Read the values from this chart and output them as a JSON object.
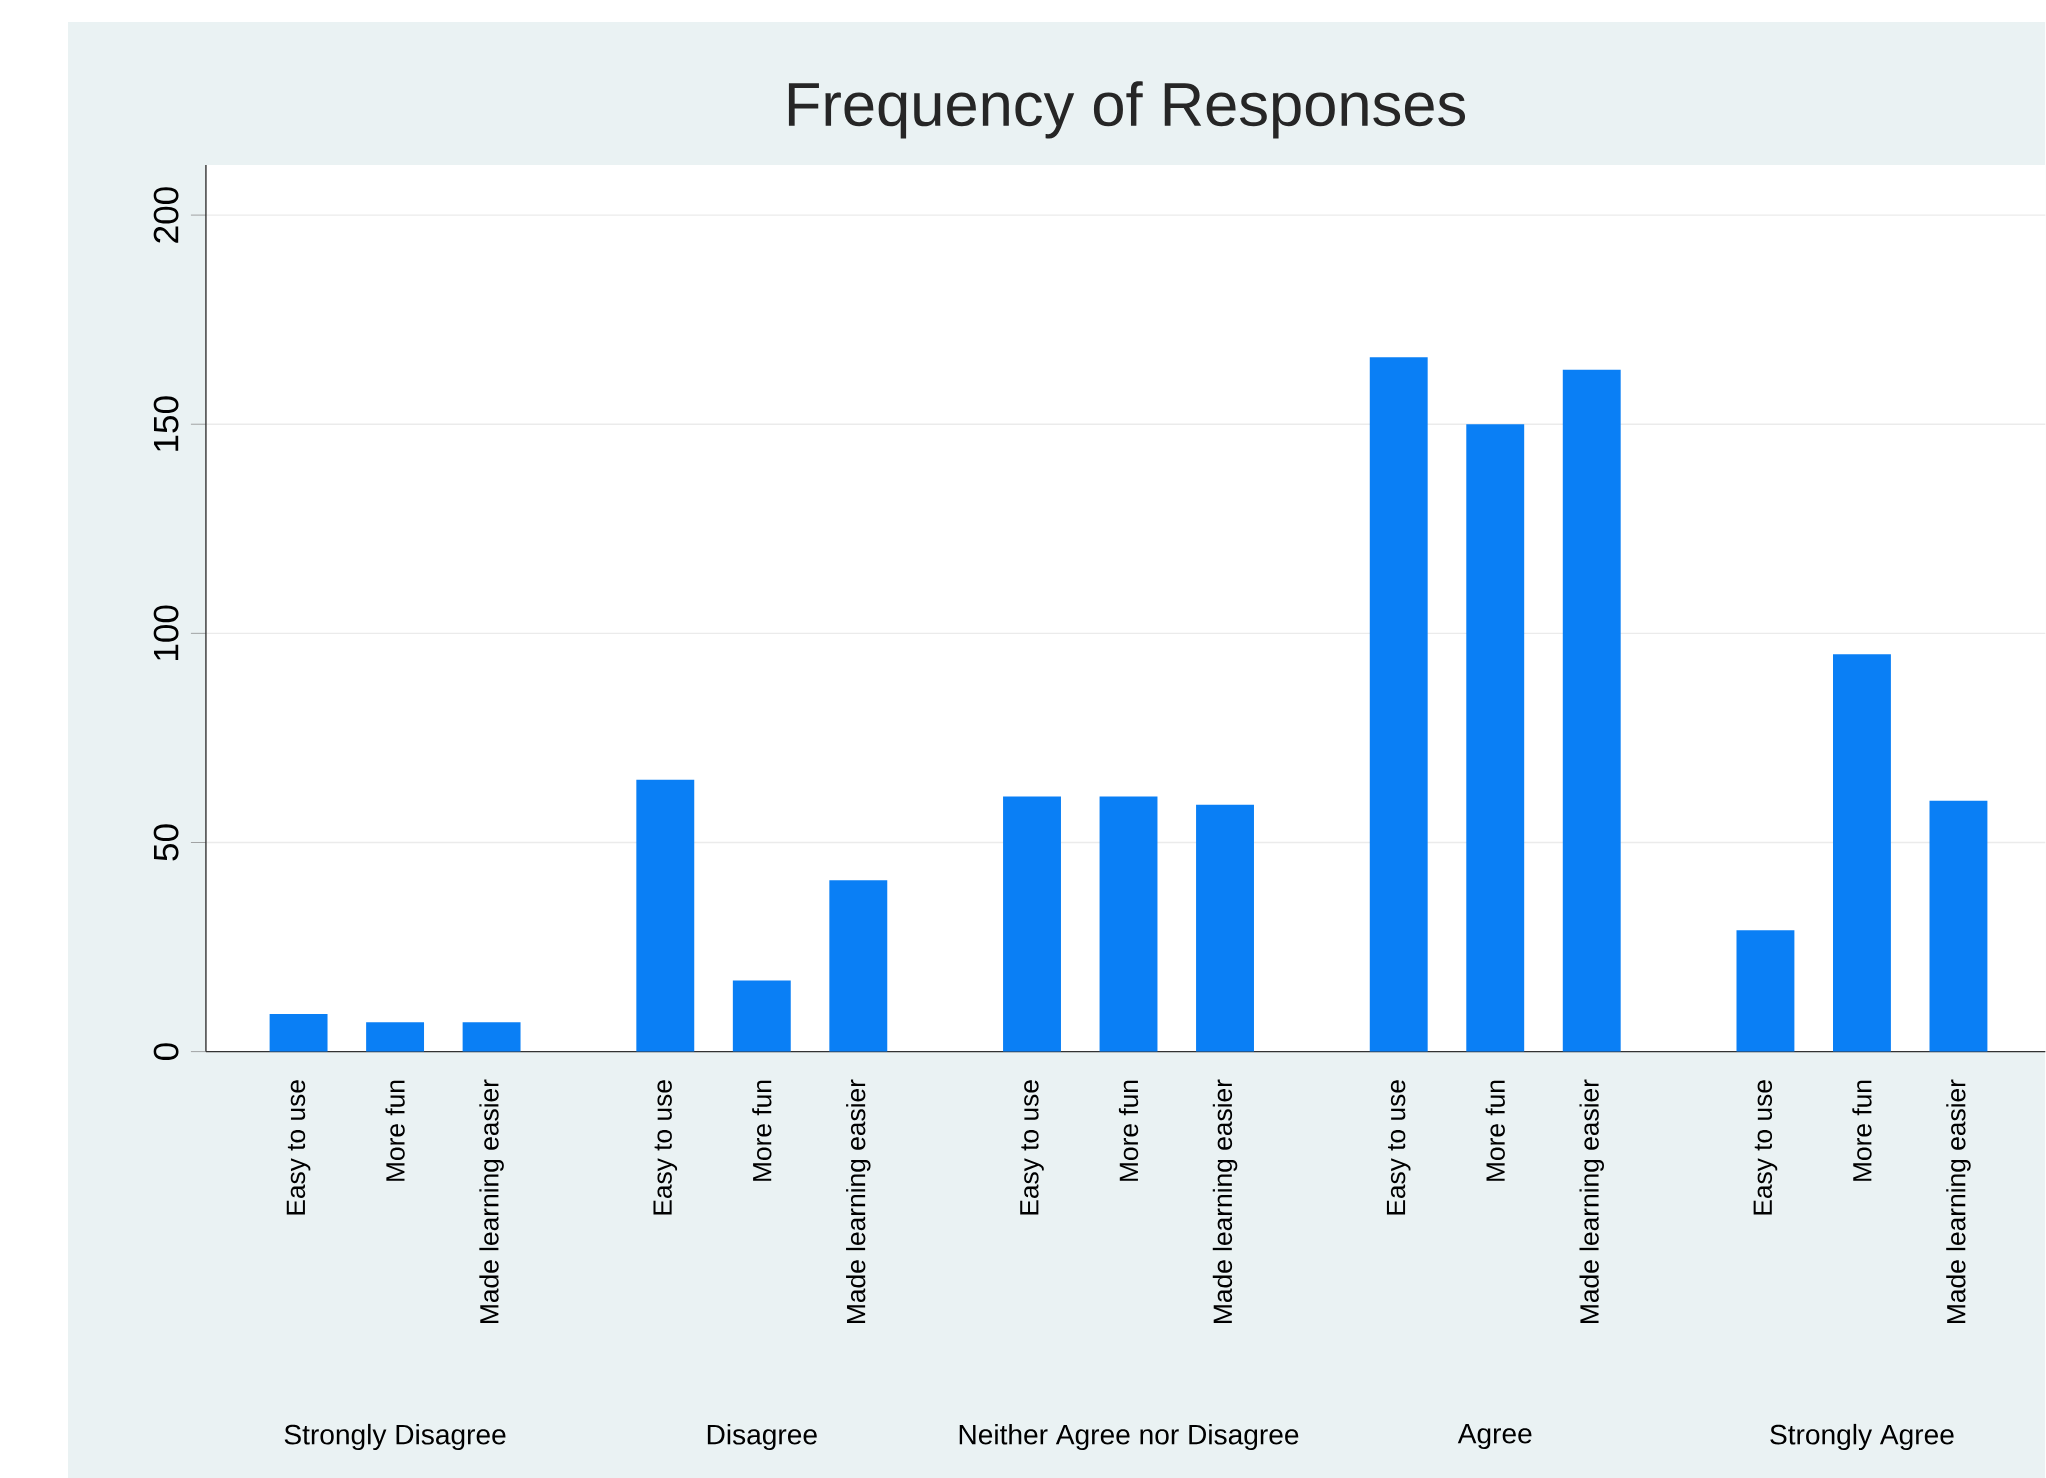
{
  "chart_data": {
    "type": "bar",
    "title": "Frequency of Responses",
    "categories": [
      "Easy to use",
      "More fun",
      "Made learning easier",
      "Easy to use",
      "More fun",
      "Made learning easier",
      "Easy to use",
      "More fun",
      "Made learning easier",
      "Easy to use",
      "More fun",
      "Made learning easier",
      "Easy to use",
      "More fun",
      "Made learning easier"
    ],
    "values": [
      9,
      7,
      7,
      65,
      17,
      41,
      61,
      61,
      59,
      166,
      150,
      163,
      29,
      95,
      60
    ],
    "color": "#0a7ff5",
    "annotations": [
      "Strongly Disagree",
      "Disagree",
      "Neither Agree nor Disagree",
      "Agree",
      "Strongly Agree"
    ],
    "ylim": [
      0,
      212
    ],
    "yticks": [
      0,
      50,
      100,
      150,
      200
    ],
    "grid": "y"
  }
}
